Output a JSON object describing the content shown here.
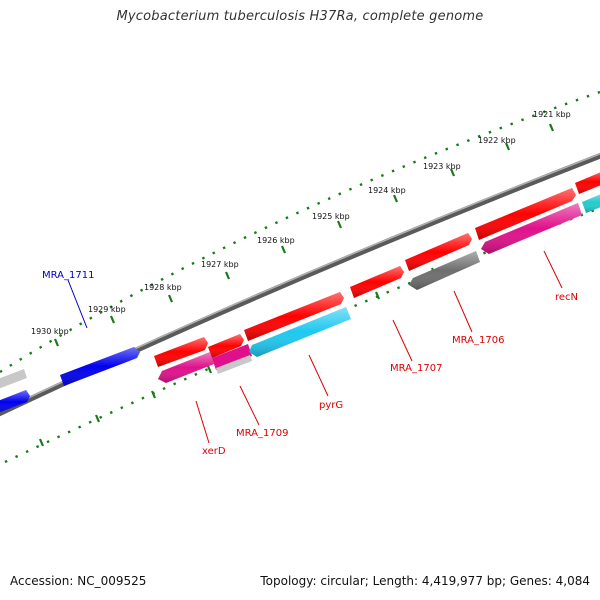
{
  "title": "Mycobacterium tuberculosis H37Ra, complete genome",
  "footer": {
    "accession": "Accession: NC_009525",
    "summary": "Topology: circular; Length: 4,419,977 bp; Genes: 4,084"
  },
  "colors": {
    "backbone": "#808080",
    "tick": "#1a7a1a",
    "red": "#ff0000",
    "blue": "#0000ee",
    "cyan": "#1ec8f0",
    "magenta": "#e0108a",
    "gray": "#6e6e6e",
    "light_gray": "#c8c8c8",
    "teal": "#22cccc",
    "label_red": "#dd0000",
    "label_blue": "#0000cc"
  },
  "ticks": [
    {
      "label": "1921 kbp"
    },
    {
      "label": "1922 kbp"
    },
    {
      "label": "1923 kbp"
    },
    {
      "label": "1924 kbp"
    },
    {
      "label": "1925 kbp"
    },
    {
      "label": "1926 kbp"
    },
    {
      "label": "1927 kbp"
    },
    {
      "label": "1928 kbp"
    },
    {
      "label": "1929 kbp"
    },
    {
      "label": "1930 kbp"
    }
  ],
  "gene_labels": [
    {
      "text": "MRA_1711",
      "color": "blue"
    },
    {
      "text": "xerD",
      "color": "label_red"
    },
    {
      "text": "MRA_1709",
      "color": "label_red"
    },
    {
      "text": "pyrG",
      "color": "label_red"
    },
    {
      "text": "MRA_1707",
      "color": "label_red"
    },
    {
      "text": "MRA_1706",
      "color": "label_red"
    },
    {
      "text": "recN",
      "color": "label_red"
    }
  ]
}
